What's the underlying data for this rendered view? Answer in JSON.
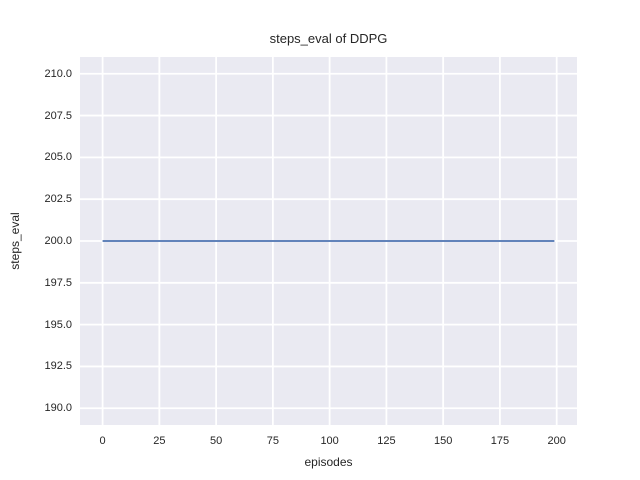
{
  "figure": {
    "background": "#ffffff",
    "text_color": "#262626"
  },
  "chart_data": {
    "type": "line",
    "title": "steps_eval of DDPG",
    "xlabel": "episodes",
    "ylabel": "steps_eval",
    "x_ticks": [
      0,
      25,
      50,
      75,
      100,
      125,
      150,
      175,
      200
    ],
    "x_tick_labels": [
      "0",
      "25",
      "50",
      "75",
      "100",
      "125",
      "150",
      "175",
      "200"
    ],
    "y_ticks": [
      190.0,
      192.5,
      195.0,
      197.5,
      200.0,
      202.5,
      205.0,
      207.5,
      210.0
    ],
    "y_tick_labels": [
      "190.0",
      "192.5",
      "195.0",
      "197.5",
      "200.0",
      "202.5",
      "205.0",
      "207.5",
      "210.0"
    ],
    "xlim": [
      -9.95,
      208.95
    ],
    "ylim": [
      189.0,
      211.0
    ],
    "grid": true,
    "legend_position": "none",
    "plot_background": "#eaeaf2",
    "grid_color": "#ffffff",
    "series": [
      {
        "name": "DDPG",
        "color": "#4c72b0",
        "constant_value": 200,
        "x": [
          0,
          199
        ],
        "y": [
          200,
          200
        ]
      }
    ]
  }
}
